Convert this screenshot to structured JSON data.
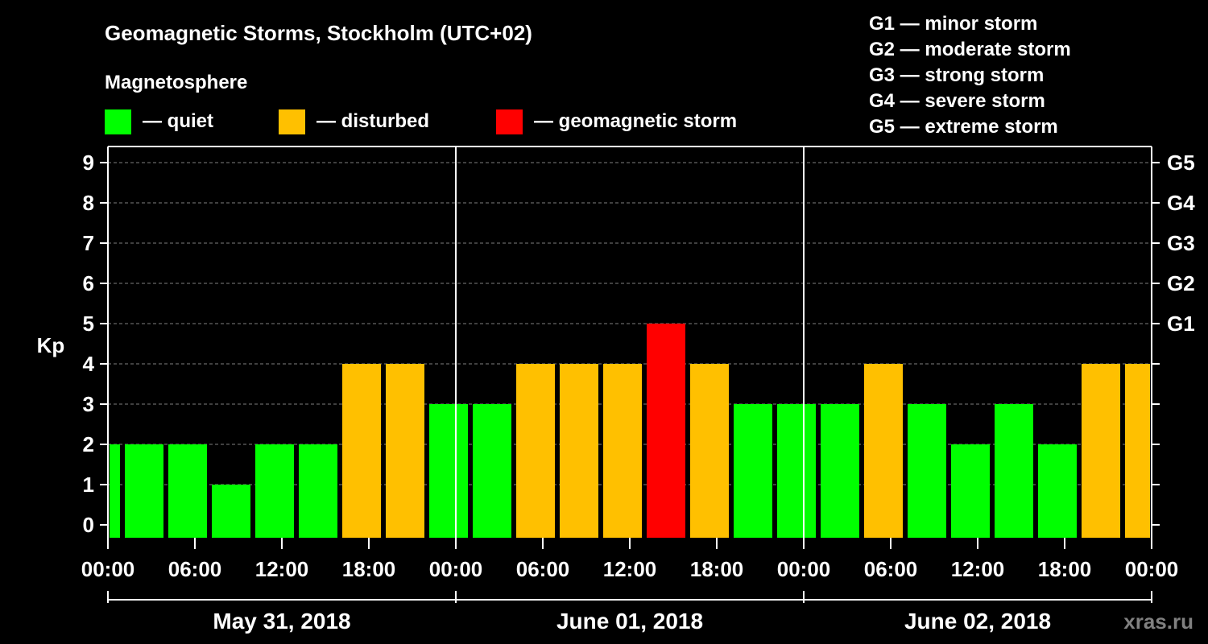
{
  "header": {
    "title": "Geomagnetic Storms, Stockholm (UTC+02)",
    "magnetosphere_label": "Magnetosphere",
    "site": "xras.ru"
  },
  "legend": {
    "items": [
      {
        "label": "— quiet",
        "color": "#00ff00"
      },
      {
        "label": "— disturbed",
        "color": "#ffc000"
      },
      {
        "label": "— geomagnetic storm",
        "color": "#ff0000"
      }
    ],
    "storm_scale": [
      "G1 — minor storm",
      "G2 — moderate storm",
      "G3 — strong storm",
      "G4 — severe storm",
      "G5 — extreme storm"
    ]
  },
  "chart_data": {
    "type": "bar",
    "title": "Geomagnetic Storms, Stockholm (UTC+02)",
    "ylabel": "Kp",
    "ylim": [
      0,
      9
    ],
    "y_ticks": [
      "0",
      "1",
      "2",
      "3",
      "4",
      "5",
      "6",
      "7",
      "8",
      "9"
    ],
    "right_axis": [
      {
        "kp": 5,
        "label": "G1"
      },
      {
        "kp": 6,
        "label": "G2"
      },
      {
        "kp": 7,
        "label": "G3"
      },
      {
        "kp": 8,
        "label": "G4"
      },
      {
        "kp": 9,
        "label": "G5"
      }
    ],
    "time_window_hours": [
      0,
      72
    ],
    "first_bar_start_hour": 1,
    "x_ticks": [
      {
        "hour": 0,
        "label": "00:00"
      },
      {
        "hour": 6,
        "label": "06:00"
      },
      {
        "hour": 12,
        "label": "12:00"
      },
      {
        "hour": 18,
        "label": "18:00"
      },
      {
        "hour": 24,
        "label": "00:00"
      },
      {
        "hour": 30,
        "label": "06:00"
      },
      {
        "hour": 36,
        "label": "12:00"
      },
      {
        "hour": 42,
        "label": "18:00"
      },
      {
        "hour": 48,
        "label": "00:00"
      },
      {
        "hour": 54,
        "label": "06:00"
      },
      {
        "hour": 60,
        "label": "12:00"
      },
      {
        "hour": 66,
        "label": "18:00"
      },
      {
        "hour": 72,
        "label": "00:00"
      }
    ],
    "days": [
      "May 31, 2018",
      "June 01, 2018",
      "June 02, 2018"
    ],
    "bar_interval_hours": 3,
    "kp_values": [
      2,
      2,
      2,
      1,
      2,
      2,
      4,
      4,
      3,
      3,
      4,
      4,
      4,
      5,
      4,
      3,
      3,
      3,
      4,
      3,
      2,
      3,
      2,
      4,
      4
    ],
    "grid": true,
    "colors": {
      "quiet": "#00ff00",
      "disturbed": "#ffc000",
      "storm": "#ff0000",
      "background": "#000000",
      "grid": "#808080",
      "axis": "#ffffff"
    }
  }
}
